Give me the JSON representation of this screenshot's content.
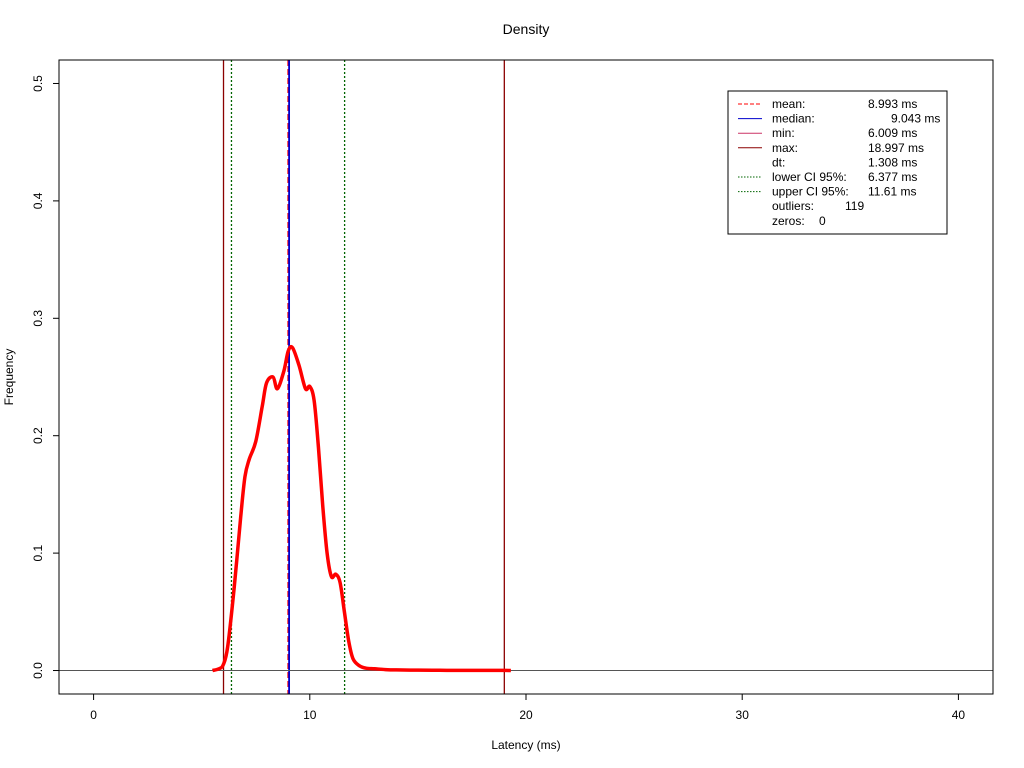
{
  "chart_data": {
    "type": "line",
    "title": "Density",
    "xlabel": "Latency (ms)",
    "ylabel": "Frequency",
    "xlim": [
      -1.6,
      41.6
    ],
    "ylim": [
      -0.02,
      0.52
    ],
    "x_ticks": [
      0,
      10,
      20,
      30,
      40
    ],
    "x_tick_labels": [
      "0",
      "10",
      "20",
      "30",
      "40"
    ],
    "y_ticks": [
      0.0,
      0.1,
      0.2,
      0.3,
      0.4,
      0.5
    ],
    "y_tick_labels": [
      "0.0",
      "0.1",
      "0.2",
      "0.3",
      "0.4",
      "0.5"
    ],
    "grid": false,
    "legend_position": "top-right",
    "series": [
      {
        "color": "#ff0000",
        "x": [
          5.5,
          5.8,
          6.0,
          6.2,
          6.5,
          6.8,
          7.0,
          7.2,
          7.5,
          7.8,
          8.0,
          8.3,
          8.5,
          8.8,
          9.0,
          9.2,
          9.5,
          9.8,
          10.0,
          10.2,
          10.4,
          10.6,
          10.8,
          11.0,
          11.2,
          11.4,
          11.6,
          11.8,
          12.0,
          12.3,
          12.6,
          13.0,
          13.5,
          14.0,
          15.0,
          16.0,
          17.0,
          18.0,
          19.0,
          19.3
        ],
        "y": [
          0.0,
          0.0015,
          0.005,
          0.02,
          0.07,
          0.13,
          0.165,
          0.18,
          0.195,
          0.225,
          0.245,
          0.25,
          0.24,
          0.255,
          0.272,
          0.275,
          0.26,
          0.24,
          0.242,
          0.23,
          0.19,
          0.14,
          0.1,
          0.08,
          0.082,
          0.075,
          0.05,
          0.025,
          0.01,
          0.004,
          0.002,
          0.0015,
          0.0008,
          0.0005,
          0.0003,
          0.0002,
          0.0001,
          0.0001,
          0.0001,
          0.0
        ]
      }
    ],
    "vlines": [
      {
        "x": 8.993,
        "color": "#ff0000",
        "style": "dashed"
      },
      {
        "x": 9.043,
        "color": "#0000cc",
        "style": "solid"
      },
      {
        "x": 6.009,
        "color": "#8b0000",
        "style": "solid"
      },
      {
        "x": 18.997,
        "color": "#8b0000",
        "style": "solid"
      },
      {
        "x": 6.377,
        "color": "#006400",
        "style": "dotted"
      },
      {
        "x": 11.61,
        "color": "#006400",
        "style": "dotted"
      }
    ],
    "hlines": [
      {
        "y": 0.0,
        "color": "#555555"
      }
    ],
    "legend": [
      {
        "label": "mean:",
        "value": "8.993 ms",
        "color": "#ff0000",
        "style": "dashed"
      },
      {
        "label": "median:",
        "value": "9.043 ms",
        "color": "#0000cc",
        "style": "solid"
      },
      {
        "label": "min:",
        "value": "6.009 ms",
        "color": "#cc3366",
        "style": "solid"
      },
      {
        "label": "max:",
        "value": "18.997 ms",
        "color": "#8b0000",
        "style": "solid"
      },
      {
        "label": "dt:",
        "value": "1.308 ms",
        "color": "",
        "style": "none"
      },
      {
        "label": "lower CI 95%:",
        "value": "6.377 ms",
        "color": "#006400",
        "style": "dotted"
      },
      {
        "label": "upper CI 95%:",
        "value": "11.61 ms",
        "color": "#006400",
        "style": "dotted"
      },
      {
        "label": "outliers:",
        "value": "119",
        "color": "",
        "style": "none"
      },
      {
        "label": "zeros:",
        "value": "0",
        "color": "",
        "style": "none"
      }
    ]
  }
}
